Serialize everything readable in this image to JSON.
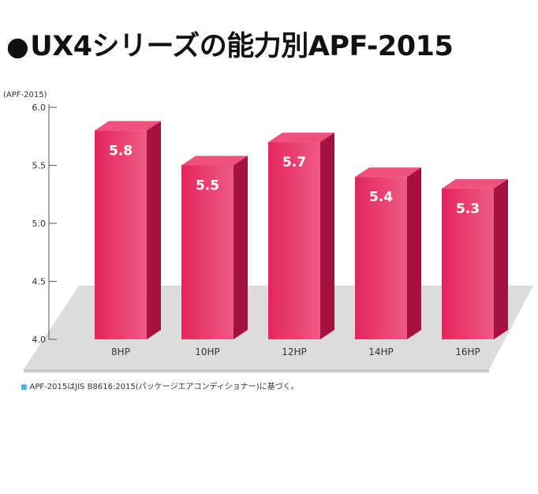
{
  "title": "UX4シリーズの能力別APF-2015",
  "title_bullet": "●",
  "unit_label": "(APF-2015)",
  "note_bullet": "■",
  "note": "APF-2015はJIS B8616:2015(パッケージエアコンディショナー)に基づく。",
  "colors": {
    "bar_front": "#e3265c",
    "bar_front_light": "#ef5b85",
    "bar_side": "#a7113f",
    "bar_top": "#f0507d",
    "floor": "#dcdcdc",
    "axis": "#555555"
  },
  "chart_data": {
    "type": "bar",
    "title": "UX4シリーズの能力別APF-2015",
    "ylabel": "(APF-2015)",
    "xlabel": "",
    "categories": [
      "8HP",
      "10HP",
      "12HP",
      "14HP",
      "16HP"
    ],
    "values": [
      5.8,
      5.5,
      5.7,
      5.4,
      5.3
    ],
    "value_labels": [
      "5.8",
      "5.5",
      "5.7",
      "5.4",
      "5.3"
    ],
    "ylim": [
      4.0,
      6.0
    ],
    "yticks": [
      "4.0",
      "4.5",
      "5.0",
      "5.5",
      "6.0"
    ],
    "ytick_values": [
      4.0,
      4.5,
      5.0,
      5.5,
      6.0
    ],
    "grid": false,
    "legend": "none"
  }
}
